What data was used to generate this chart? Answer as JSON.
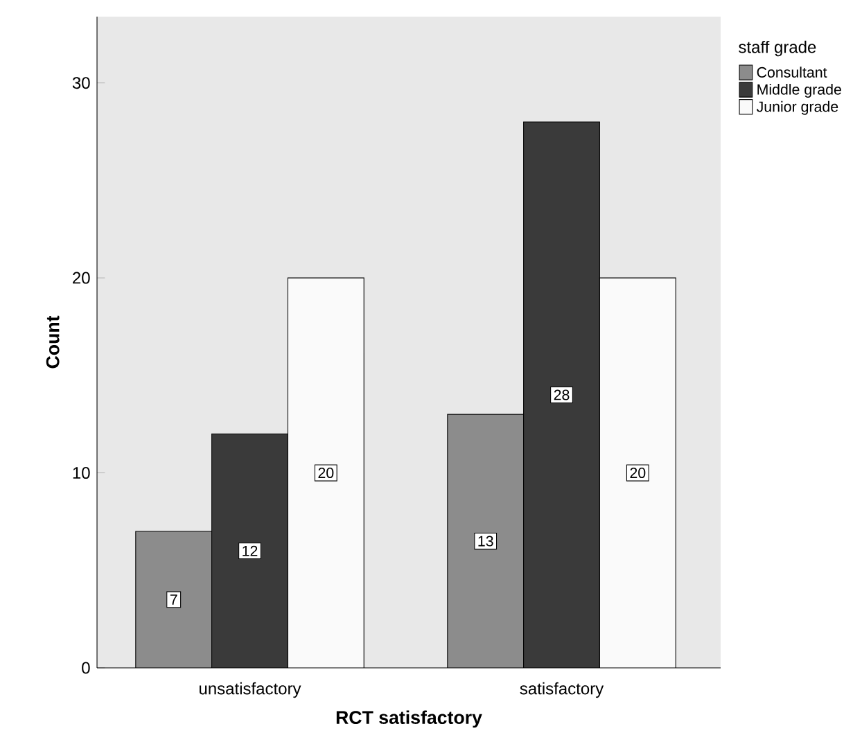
{
  "chart_data": {
    "type": "bar",
    "xlabel": "RCT satisfactory",
    "ylabel": "Count",
    "legend_title": "staff grade",
    "categories": [
      "unsatisfactory",
      "satisfactory"
    ],
    "series": [
      {
        "name": "Consultant",
        "color": "#8c8c8c",
        "values": [
          7,
          13
        ]
      },
      {
        "name": "Middle grade",
        "color": "#3a3a3a",
        "values": [
          12,
          28
        ]
      },
      {
        "name": "Junior grade",
        "color": "#fafafa",
        "values": [
          20,
          20
        ]
      }
    ],
    "ylim": [
      0,
      33.4
    ],
    "yticks": [
      0,
      10,
      20,
      30
    ],
    "data_labels": true,
    "legend": "top right",
    "grid": false
  }
}
